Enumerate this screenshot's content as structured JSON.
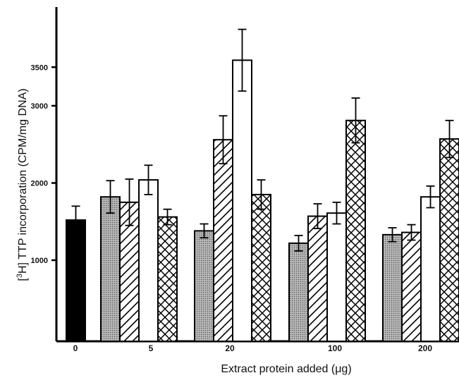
{
  "chart_data": {
    "type": "bar",
    "title": "",
    "ylabel_parts": {
      "open": "[",
      "sup": "3",
      "rest": "H] TTP incorporation (CPM/mg DNA)"
    },
    "xlabel": "Extract protein added (μg)",
    "ylim": [
      0,
      4000
    ],
    "yticks": [
      1000,
      2000,
      3000,
      3500
    ],
    "grid": false,
    "legend": "none",
    "control": {
      "category": "0",
      "value": 1520,
      "error": 180,
      "fill": "solid-black"
    },
    "categories": [
      "5",
      "20",
      "100",
      "200"
    ],
    "series": [
      {
        "fill": "dotted-gray",
        "values": [
          1820,
          1380,
          1220,
          1330
        ],
        "errors": [
          210,
          90,
          100,
          90
        ]
      },
      {
        "fill": "diagonal-hatch",
        "values": [
          1750,
          2560,
          1570,
          1360
        ],
        "errors": [
          300,
          310,
          160,
          100
        ]
      },
      {
        "fill": "white",
        "values": [
          2040,
          3590,
          1610,
          1820
        ],
        "errors": [
          190,
          400,
          140,
          140
        ]
      },
      {
        "fill": "cross-hatch",
        "values": [
          1560,
          1850,
          2810,
          2570
        ],
        "errors": [
          100,
          190,
          290,
          240
        ]
      }
    ]
  }
}
